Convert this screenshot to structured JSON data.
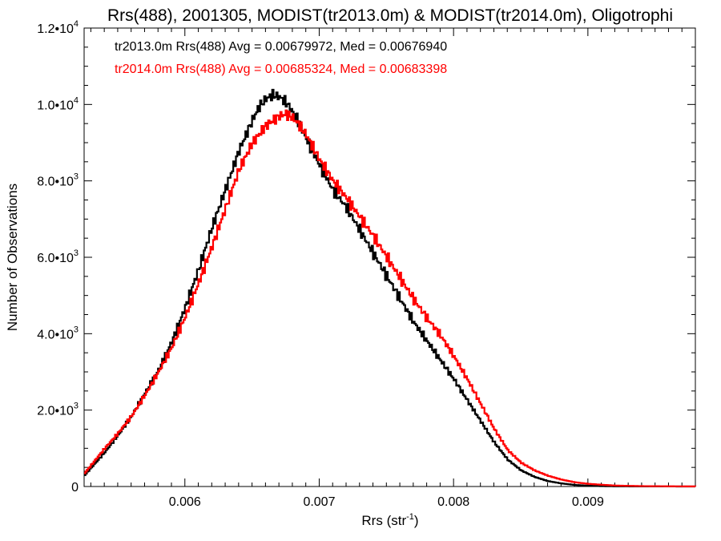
{
  "chart_data": {
    "type": "line",
    "step": true,
    "title": "Rrs(488), 2001305, MODIST(tr2013.0m) & MODIST(tr2014.0m), Oligotrophi",
    "xlabel": "Rrs (str",
    "xlabel_sup": "-1",
    "xlabel_end": ")",
    "ylabel": "Number of Observations",
    "xlim": [
      0.00525,
      0.0098
    ],
    "ylim": [
      0,
      12000
    ],
    "x_ticks": [
      {
        "value": 0.006,
        "label": "0.006"
      },
      {
        "value": 0.007,
        "label": "0.007"
      },
      {
        "value": 0.008,
        "label": "0.008"
      },
      {
        "value": 0.009,
        "label": "0.009"
      }
    ],
    "y_ticks": [
      {
        "value": 0,
        "base": "0",
        "exp": ""
      },
      {
        "value": 2000,
        "base": "2.0•10",
        "exp": "3"
      },
      {
        "value": 4000,
        "base": "4.0•10",
        "exp": "3"
      },
      {
        "value": 6000,
        "base": "6.0•10",
        "exp": "3"
      },
      {
        "value": 8000,
        "base": "8.0•10",
        "exp": "3"
      },
      {
        "value": 10000,
        "base": "1.0•10",
        "exp": "4"
      },
      {
        "value": 12000,
        "base": "1.2•10",
        "exp": "4"
      }
    ],
    "legend": {
      "placement": "top-left"
    },
    "series": [
      {
        "name": "tr2013.0m",
        "color": "#000000",
        "stats_text": "tr2013.0m Rrs(488) Avg = 0.00679972, Med = 0.00676940",
        "x": [
          0.00525,
          0.0054,
          0.0055,
          0.0056,
          0.0057,
          0.0058,
          0.0059,
          0.006,
          0.0061,
          0.0062,
          0.0063,
          0.0064,
          0.00645,
          0.0065,
          0.00655,
          0.0066,
          0.00665,
          0.0067,
          0.00675,
          0.0068,
          0.00685,
          0.0069,
          0.007,
          0.0071,
          0.0072,
          0.0073,
          0.0074,
          0.0075,
          0.0076,
          0.0077,
          0.0078,
          0.0079,
          0.008,
          0.0081,
          0.0082,
          0.0083,
          0.0084,
          0.0085,
          0.0086,
          0.0087,
          0.0088,
          0.0089,
          0.009,
          0.0091,
          0.0092,
          0.0094,
          0.0096,
          0.0098
        ],
        "y": [
          300,
          900,
          1350,
          1850,
          2450,
          3050,
          3800,
          4700,
          5700,
          6800,
          7800,
          8800,
          9200,
          9600,
          9950,
          10150,
          10250,
          10200,
          10050,
          9800,
          9500,
          9100,
          8400,
          7750,
          7300,
          6700,
          6100,
          5500,
          4900,
          4300,
          3800,
          3300,
          2800,
          2250,
          1700,
          1150,
          700,
          420,
          250,
          140,
          80,
          40,
          20,
          10,
          5,
          2,
          1,
          0
        ]
      },
      {
        "name": "tr2014.0m",
        "color": "#ff0000",
        "stats_text": "tr2014.0m Rrs(488) Avg = 0.00685324, Med = 0.00683398",
        "x": [
          0.00525,
          0.0054,
          0.0055,
          0.0056,
          0.0057,
          0.0058,
          0.0059,
          0.006,
          0.0061,
          0.0062,
          0.0063,
          0.0064,
          0.0065,
          0.0066,
          0.0067,
          0.00675,
          0.0068,
          0.00685,
          0.0069,
          0.007,
          0.0071,
          0.0072,
          0.0073,
          0.0074,
          0.0075,
          0.0076,
          0.0077,
          0.0078,
          0.0079,
          0.008,
          0.0081,
          0.0082,
          0.0083,
          0.0084,
          0.0085,
          0.0086,
          0.0087,
          0.0088,
          0.0089,
          0.009,
          0.0091,
          0.0092,
          0.0094,
          0.0096,
          0.0098
        ],
        "y": [
          350,
          1000,
          1400,
          1850,
          2400,
          3000,
          3650,
          4450,
          5350,
          6300,
          7300,
          8300,
          9000,
          9450,
          9700,
          9750,
          9650,
          9450,
          9200,
          8550,
          8000,
          7550,
          7050,
          6550,
          6000,
          5450,
          4900,
          4400,
          3950,
          3400,
          2800,
          2150,
          1500,
          950,
          620,
          420,
          280,
          180,
          110,
          70,
          45,
          25,
          10,
          5,
          2
        ]
      }
    ]
  }
}
